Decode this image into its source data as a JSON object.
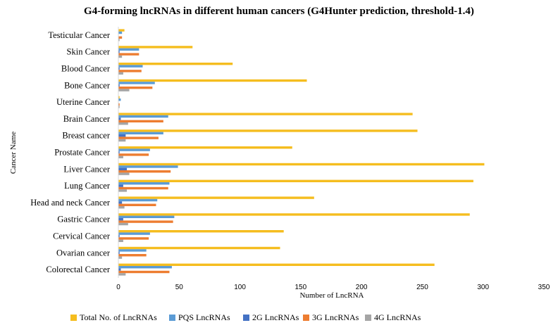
{
  "chart_data": {
    "type": "bar",
    "orientation": "horizontal",
    "title": "G4-forming lncRNAs in different human cancers (G4Hunter prediction, threshold-1.4)",
    "xlabel": "Number of LncRNA",
    "ylabel": "Cancer Name",
    "xlim": [
      0,
      350
    ],
    "xticks": [
      0,
      50,
      100,
      150,
      200,
      250,
      300,
      350
    ],
    "grid": false,
    "legend_position": "bottom",
    "categories": [
      "Testicular Cancer",
      "Skin Cancer",
      "Blood Cancer",
      "Bone Cancer",
      "Uterine Cancer",
      "Brain Cancer",
      "Breast cancer",
      "Prostate Cancer",
      "Liver Cancer",
      "Lung Cancer",
      "Head and neck Cancer",
      "Gastric Cancer",
      "Cervical Cancer",
      "Ovarian cancer",
      "Colorectal Cancer"
    ],
    "series": [
      {
        "name": "Total No. of LncRNAs",
        "color": "#f5bd1f",
        "values": [
          5,
          61,
          94,
          155,
          1,
          242,
          246,
          143,
          301,
          292,
          161,
          289,
          136,
          133,
          260
        ]
      },
      {
        "name": "PQS LncRNAs",
        "color": "#5b9bd5",
        "values": [
          3,
          17,
          20,
          30,
          2,
          41,
          37,
          26,
          49,
          42,
          32,
          46,
          26,
          23,
          44
        ]
      },
      {
        "name": "2G LncRNAs",
        "color": "#4472c4",
        "values": [
          0,
          1,
          1,
          1,
          0,
          2,
          6,
          1,
          7,
          4,
          3,
          4,
          1,
          1,
          2
        ]
      },
      {
        "name": "3G LncRNAs",
        "color": "#ed7d31",
        "values": [
          3,
          17,
          19,
          28,
          1,
          37,
          33,
          25,
          43,
          41,
          31,
          45,
          25,
          23,
          42
        ]
      },
      {
        "name": "4G LncRNAs",
        "color": "#a5a5a5",
        "values": [
          1,
          3,
          4,
          9,
          1,
          8,
          6,
          4,
          9,
          7,
          5,
          8,
          4,
          3,
          6
        ]
      }
    ]
  }
}
